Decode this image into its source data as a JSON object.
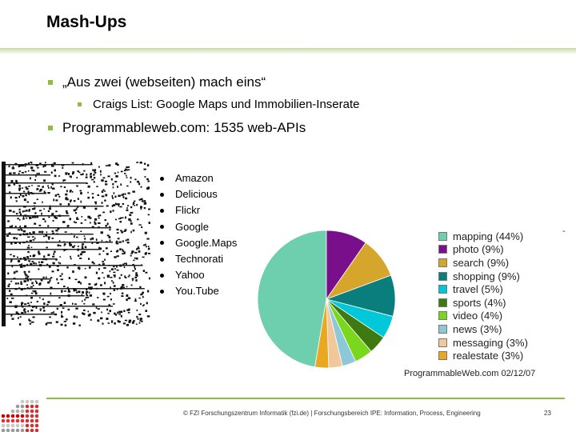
{
  "slide": {
    "title": "Mash-Ups",
    "bullets": [
      {
        "text": "„Aus zwei (webseiten) mach eins“"
      },
      {
        "text": "Craigs List: Google Maps und Immobilien-Inserate"
      },
      {
        "text": "Programmableweb.com: 1535 web-APIs"
      }
    ],
    "api_list": [
      "Amazon",
      "Delicious",
      "Flickr",
      "Google",
      "Google.Maps",
      "Technorati",
      "Yahoo",
      "You.Tube"
    ],
    "pie_source": "ProgrammableWeb.com 02/12/07",
    "side_mark": "-",
    "footer": "© FZI Forschungszentrum Informatik (fzi.de) | Forschungsbereich IPE: Information, Process, Engineering",
    "page_number": "23"
  },
  "chart_data": {
    "type": "pie",
    "labels": [
      "mapping (44%)",
      "photo (9%)",
      "search (9%)",
      "shopping (9%)",
      "travel (5%)",
      "sports (4%)",
      "video (4%)",
      "news (3%)",
      "messaging (3%)",
      "realestate (3%)"
    ],
    "categories": [
      "mapping",
      "photo",
      "search",
      "shopping",
      "travel",
      "sports",
      "video",
      "news",
      "messaging",
      "realestate"
    ],
    "values": [
      44,
      9,
      9,
      9,
      5,
      4,
      4,
      3,
      3,
      3
    ],
    "colors": [
      "#6dcfae",
      "#7a0f8c",
      "#d6a52c",
      "#0a7d7d",
      "#00c8d8",
      "#3e7a10",
      "#7ad81c",
      "#8cc8d8",
      "#f0c89c",
      "#e8a820"
    ],
    "legend": "right"
  }
}
